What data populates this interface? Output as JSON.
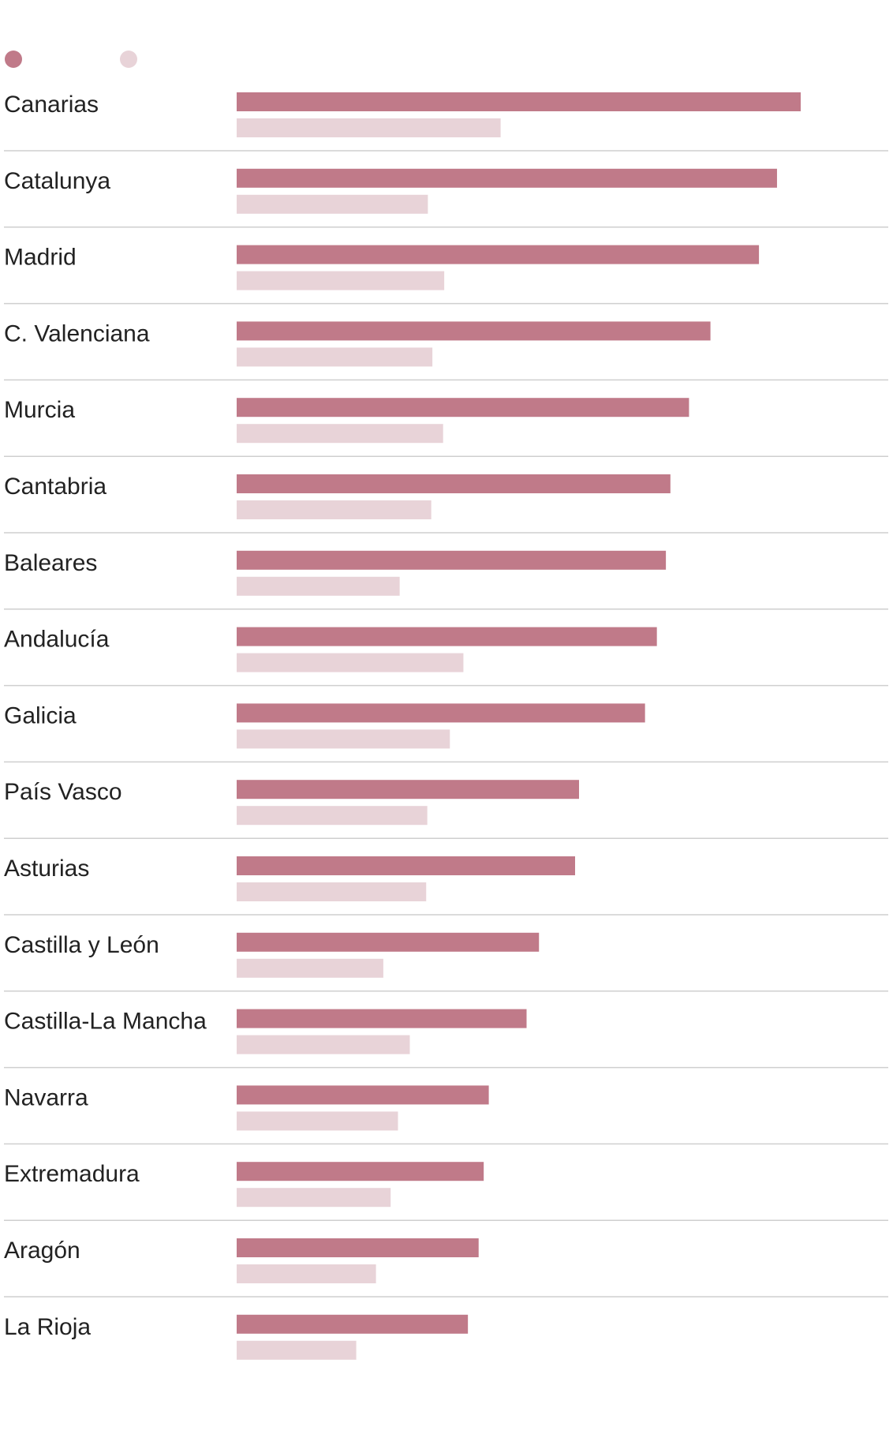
{
  "chart_data": {
    "type": "bar",
    "orientation": "horizontal",
    "title": "",
    "xlabel": "",
    "ylabel": "",
    "categories": [
      "Canarias",
      "Catalunya",
      "Madrid",
      "C. Valenciana",
      "Murcia",
      "Cantabria",
      "Baleares",
      "Andalucía",
      "Galicia",
      "País Vasco",
      "Asturias",
      "Castilla y León",
      "Castilla-La Mancha",
      "Navarra",
      "Extremadura",
      "Aragón",
      "La Rioja"
    ],
    "series": [
      {
        "color": "#c07a89",
        "values": [
          100,
          95.8,
          92.6,
          84.0,
          80.2,
          76.9,
          76.1,
          74.5,
          72.4,
          60.7,
          60.0,
          53.6,
          51.4,
          44.7,
          43.8,
          42.9,
          41.0
        ]
      },
      {
        "color": "#e8d3d8",
        "values": [
          46.8,
          33.9,
          36.8,
          34.7,
          36.6,
          34.5,
          28.9,
          40.2,
          37.8,
          33.8,
          33.6,
          26.0,
          30.7,
          28.6,
          27.3,
          24.7,
          21.2
        ]
      }
    ],
    "xlim": [
      0,
      100
    ],
    "grid": false,
    "legend": "top-left",
    "divider_color": "#cfcfcf"
  }
}
